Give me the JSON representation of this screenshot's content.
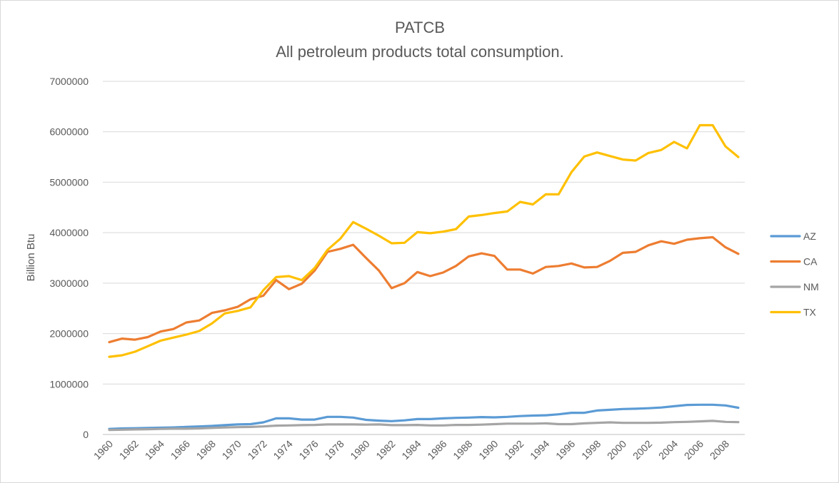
{
  "chart_data": {
    "type": "line",
    "title": "PATCB",
    "subtitle": "All petroleum products total consumption.",
    "xlabel": "",
    "ylabel": "Billion Btu",
    "ylim": [
      0,
      7000000
    ],
    "yticks": [
      0,
      1000000,
      2000000,
      3000000,
      4000000,
      5000000,
      6000000,
      7000000
    ],
    "ytick_labels": [
      "0",
      "1000000",
      "2000000",
      "3000000",
      "4000000",
      "5000000",
      "6000000",
      "7000000"
    ],
    "xtick_labels": [
      "1960",
      "1962",
      "1964",
      "1966",
      "1968",
      "1970",
      "1972",
      "1974",
      "1976",
      "1978",
      "1980",
      "1982",
      "1984",
      "1986",
      "1988",
      "1990",
      "1992",
      "1994",
      "1996",
      "1998",
      "2000",
      "2002",
      "2004",
      "2006",
      "2008"
    ],
    "grid": true,
    "legend_position": "right",
    "x": [
      1960,
      1961,
      1962,
      1963,
      1964,
      1965,
      1966,
      1967,
      1968,
      1969,
      1970,
      1971,
      1972,
      1973,
      1974,
      1975,
      1976,
      1977,
      1978,
      1979,
      1980,
      1981,
      1982,
      1983,
      1984,
      1985,
      1986,
      1987,
      1988,
      1989,
      1990,
      1991,
      1992,
      1993,
      1994,
      1995,
      1996,
      1997,
      1998,
      1999,
      2000,
      2001,
      2002,
      2003,
      2004,
      2005,
      2006,
      2007,
      2008,
      2009
    ],
    "series": [
      {
        "name": "AZ",
        "color": "#5b9bd5",
        "values": [
          110000,
          120000,
          125000,
          130000,
          135000,
          140000,
          150000,
          160000,
          170000,
          185000,
          200000,
          205000,
          240000,
          320000,
          320000,
          295000,
          295000,
          350000,
          350000,
          335000,
          290000,
          275000,
          265000,
          280000,
          305000,
          305000,
          320000,
          330000,
          335000,
          345000,
          340000,
          350000,
          365000,
          375000,
          380000,
          400000,
          430000,
          430000,
          475000,
          490000,
          505000,
          510000,
          520000,
          535000,
          560000,
          585000,
          590000,
          590000,
          575000,
          530000
        ]
      },
      {
        "name": "CA",
        "color": "#ed7d31",
        "values": [
          1830000,
          1900000,
          1880000,
          1930000,
          2040000,
          2090000,
          2220000,
          2260000,
          2410000,
          2460000,
          2530000,
          2680000,
          2750000,
          3060000,
          2880000,
          2990000,
          3250000,
          3620000,
          3680000,
          3760000,
          3500000,
          3250000,
          2900000,
          3000000,
          3220000,
          3140000,
          3210000,
          3340000,
          3530000,
          3590000,
          3540000,
          3270000,
          3270000,
          3190000,
          3320000,
          3340000,
          3390000,
          3310000,
          3320000,
          3440000,
          3600000,
          3620000,
          3750000,
          3830000,
          3780000,
          3860000,
          3890000,
          3910000,
          3710000,
          3580000
        ]
      },
      {
        "name": "NM",
        "color": "#a5a5a5",
        "values": [
          90000,
          95000,
          100000,
          105000,
          110000,
          115000,
          115000,
          120000,
          130000,
          140000,
          145000,
          150000,
          160000,
          175000,
          180000,
          185000,
          190000,
          200000,
          200000,
          200000,
          195000,
          200000,
          185000,
          185000,
          190000,
          180000,
          180000,
          190000,
          190000,
          195000,
          205000,
          215000,
          215000,
          215000,
          220000,
          205000,
          205000,
          220000,
          230000,
          240000,
          230000,
          230000,
          230000,
          235000,
          245000,
          250000,
          260000,
          270000,
          250000,
          245000
        ]
      },
      {
        "name": "TX",
        "color": "#ffc000",
        "values": [
          1540000,
          1570000,
          1640000,
          1750000,
          1860000,
          1920000,
          1980000,
          2050000,
          2200000,
          2400000,
          2450000,
          2520000,
          2860000,
          3120000,
          3140000,
          3060000,
          3300000,
          3660000,
          3880000,
          4210000,
          4080000,
          3940000,
          3790000,
          3800000,
          4010000,
          3990000,
          4020000,
          4070000,
          4320000,
          4350000,
          4390000,
          4420000,
          4610000,
          4560000,
          4760000,
          4760000,
          5200000,
          5510000,
          5590000,
          5520000,
          5450000,
          5430000,
          5580000,
          5640000,
          5800000,
          5670000,
          6130000,
          6130000,
          5710000,
          5500000
        ]
      }
    ]
  }
}
